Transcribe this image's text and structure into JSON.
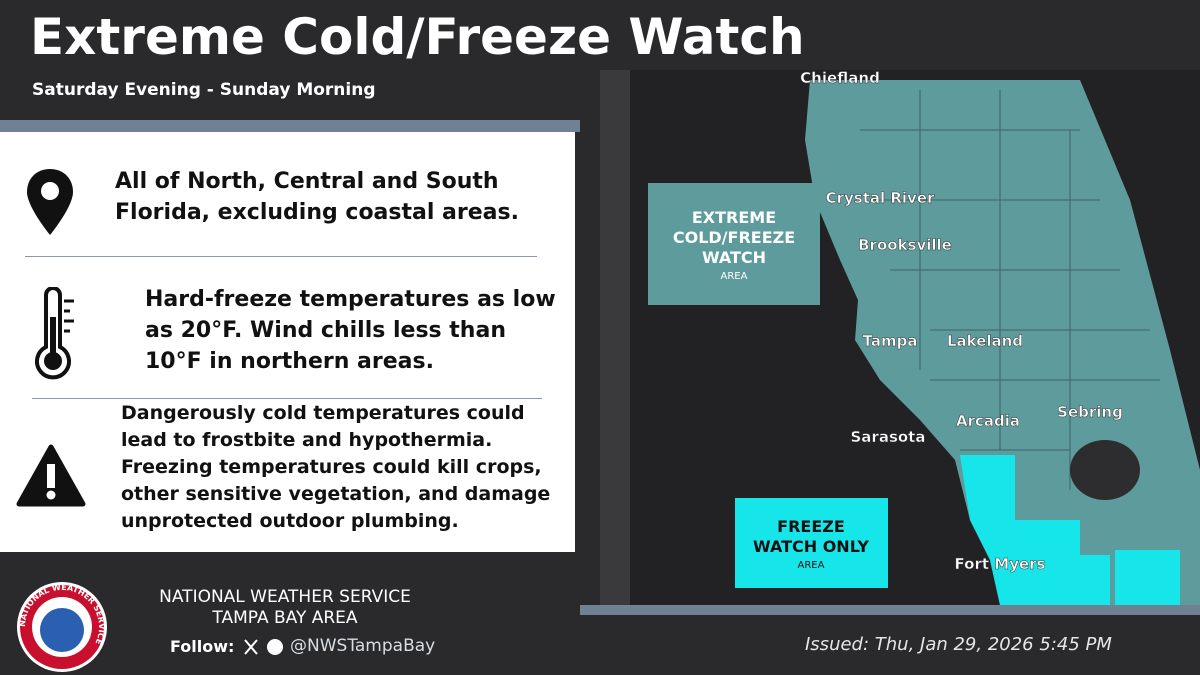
{
  "header": {
    "title": "Extreme Cold/Freeze Watch",
    "subtitle": "Saturday Evening - Sunday Morning"
  },
  "info": [
    {
      "text": "All of North, Central and South Florida, excluding coastal areas."
    },
    {
      "text": "Hard-freeze temperatures as low as 20°F. Wind chills less than 10°F in northern areas."
    },
    {
      "text": "Dangerously cold temperatures could lead to frostbite and hypothermia. Freezing temperatures could kill crops, other sensitive vegetation, and damage unprotected outdoor plumbing."
    }
  ],
  "map": {
    "cities": [
      "Chiefland",
      "Crystal River",
      "Brooksville",
      "Tampa",
      "Lakeland",
      "Arcadia",
      "Sebring",
      "Sarasota",
      "Fort Myers"
    ],
    "legend": [
      {
        "lines": [
          "EXTREME",
          "COLD/FREEZE",
          "WATCH"
        ],
        "sub": "AREA"
      },
      {
        "lines": [
          "FREEZE",
          "WATCH ONLY"
        ],
        "sub": "AREA"
      }
    ]
  },
  "footer": {
    "logo_text": "NATIONAL WEATHER SERVICE",
    "org": [
      "NATIONAL WEATHER SERVICE",
      "TAMPA BAY AREA"
    ],
    "follow": "Follow:",
    "handle": "@NWSTampaBay",
    "issued": "Issued: Thu, Jan 29, 2026 5:45 PM"
  }
}
